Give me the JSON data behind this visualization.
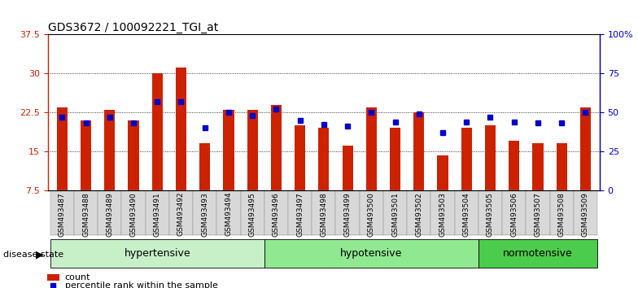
{
  "title": "GDS3672 / 100092221_TGI_at",
  "samples": [
    "GSM493487",
    "GSM493488",
    "GSM493489",
    "GSM493490",
    "GSM493491",
    "GSM493492",
    "GSM493493",
    "GSM493494",
    "GSM493495",
    "GSM493496",
    "GSM493497",
    "GSM493498",
    "GSM493499",
    "GSM493500",
    "GSM493501",
    "GSM493502",
    "GSM493503",
    "GSM493504",
    "GSM493505",
    "GSM493506",
    "GSM493507",
    "GSM493508",
    "GSM493509"
  ],
  "count_values": [
    23.5,
    21.0,
    23.0,
    21.0,
    30.0,
    31.2,
    16.5,
    23.0,
    23.0,
    24.0,
    20.0,
    19.5,
    16.0,
    23.5,
    19.5,
    22.5,
    14.2,
    19.5,
    20.0,
    17.0,
    16.5,
    16.5,
    23.5
  ],
  "percentile_values": [
    47,
    43,
    47,
    43,
    57,
    57,
    40,
    50,
    48,
    52,
    45,
    42,
    41,
    50,
    44,
    49,
    37,
    44,
    47,
    44,
    43,
    43,
    50
  ],
  "groups": [
    {
      "label": "hypertensive",
      "start": 0,
      "end": 8,
      "color": "#c8f0c8"
    },
    {
      "label": "hypotensive",
      "start": 9,
      "end": 17,
      "color": "#90e890"
    },
    {
      "label": "normotensive",
      "start": 18,
      "end": 22,
      "color": "#4ccc4c"
    }
  ],
  "ylim_left": [
    7.5,
    37.5
  ],
  "ylim_right": [
    0,
    100
  ],
  "yticks_left": [
    7.5,
    15.0,
    22.5,
    30.0,
    37.5
  ],
  "yticks_right": [
    0,
    25,
    50,
    75,
    100
  ],
  "bar_color": "#cc2200",
  "dot_color": "#0000cc",
  "bar_width": 0.45,
  "background_color": "#ffffff",
  "legend_count_label": "count",
  "legend_percentile_label": "percentile rank within the sample",
  "disease_state_label": "disease state",
  "group_label_fontsize": 9,
  "title_fontsize": 10
}
